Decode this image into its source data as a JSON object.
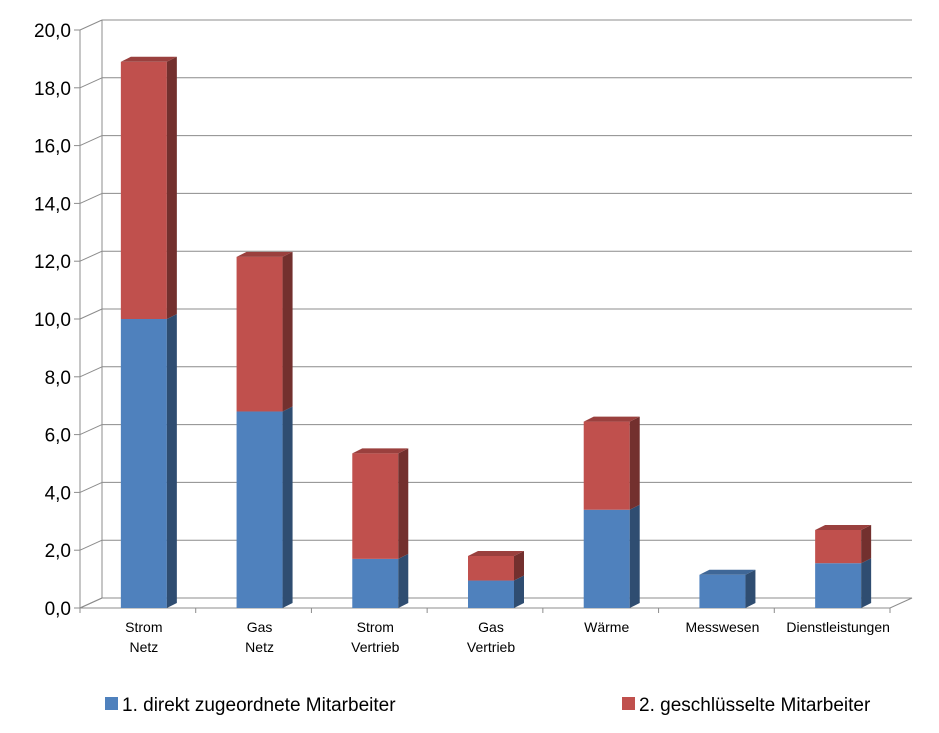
{
  "chart_data": {
    "type": "bar",
    "stacked": true,
    "three_d": true,
    "categories": [
      [
        "Strom",
        "Netz"
      ],
      [
        "Gas",
        "Netz"
      ],
      [
        "Strom",
        "Vertrieb"
      ],
      [
        "Gas",
        "Vertrieb"
      ],
      [
        "Wärme"
      ],
      [
        "Messwesen"
      ],
      [
        "Dienstleistungen"
      ]
    ],
    "series": [
      {
        "name": "1. direkt zugeordnete Mitarbeiter",
        "color": "#4f81bd",
        "values": [
          10.0,
          6.8,
          1.7,
          0.95,
          3.4,
          1.15,
          1.55
        ]
      },
      {
        "name": "2. geschlüsselte Mitarbeiter",
        "color": "#c0504d",
        "values": [
          8.9,
          5.35,
          3.65,
          0.85,
          3.05,
          0.0,
          1.15
        ]
      }
    ],
    "ylim": [
      0,
      20
    ],
    "yticks": [
      "0,0",
      "2,0",
      "4,0",
      "6,0",
      "8,0",
      "10,0",
      "12,0",
      "14,0",
      "16,0",
      "18,0",
      "20,0"
    ],
    "grid": true,
    "legend_position": "bottom"
  }
}
